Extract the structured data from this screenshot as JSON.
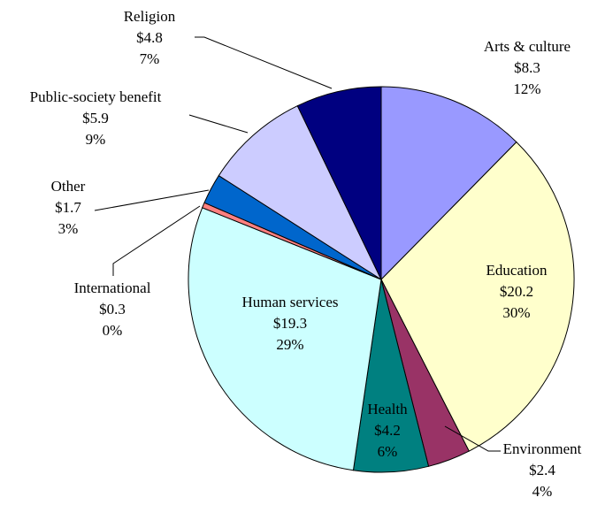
{
  "chart_data": {
    "type": "pie",
    "title": "",
    "slices": [
      {
        "name": "Arts & culture",
        "value": 8.3,
        "value_label": "$8.3",
        "pct_label": "12%",
        "color": "#9999ff"
      },
      {
        "name": "Education",
        "value": 20.2,
        "value_label": "$20.2",
        "pct_label": "30%",
        "color": "#ffffcc"
      },
      {
        "name": "Environment",
        "value": 2.4,
        "value_label": "$2.4",
        "pct_label": "4%",
        "color": "#993366"
      },
      {
        "name": "Health",
        "value": 4.2,
        "value_label": "$4.2",
        "pct_label": "6%",
        "color": "#008080"
      },
      {
        "name": "Human services",
        "value": 19.3,
        "value_label": "$19.3",
        "pct_label": "29%",
        "color": "#ccffff"
      },
      {
        "name": "International",
        "value": 0.3,
        "value_label": "$0.3",
        "pct_label": "0%",
        "color": "#ff8080"
      },
      {
        "name": "Other",
        "value": 1.7,
        "value_label": "$1.7",
        "pct_label": "3%",
        "color": "#0066cc"
      },
      {
        "name": "Public-society benefit",
        "value": 5.9,
        "value_label": "$5.9",
        "pct_label": "9%",
        "color": "#ccccff"
      },
      {
        "name": "Religion",
        "value": 4.8,
        "value_label": "$4.8",
        "pct_label": "7%",
        "color": "#000080"
      }
    ]
  }
}
